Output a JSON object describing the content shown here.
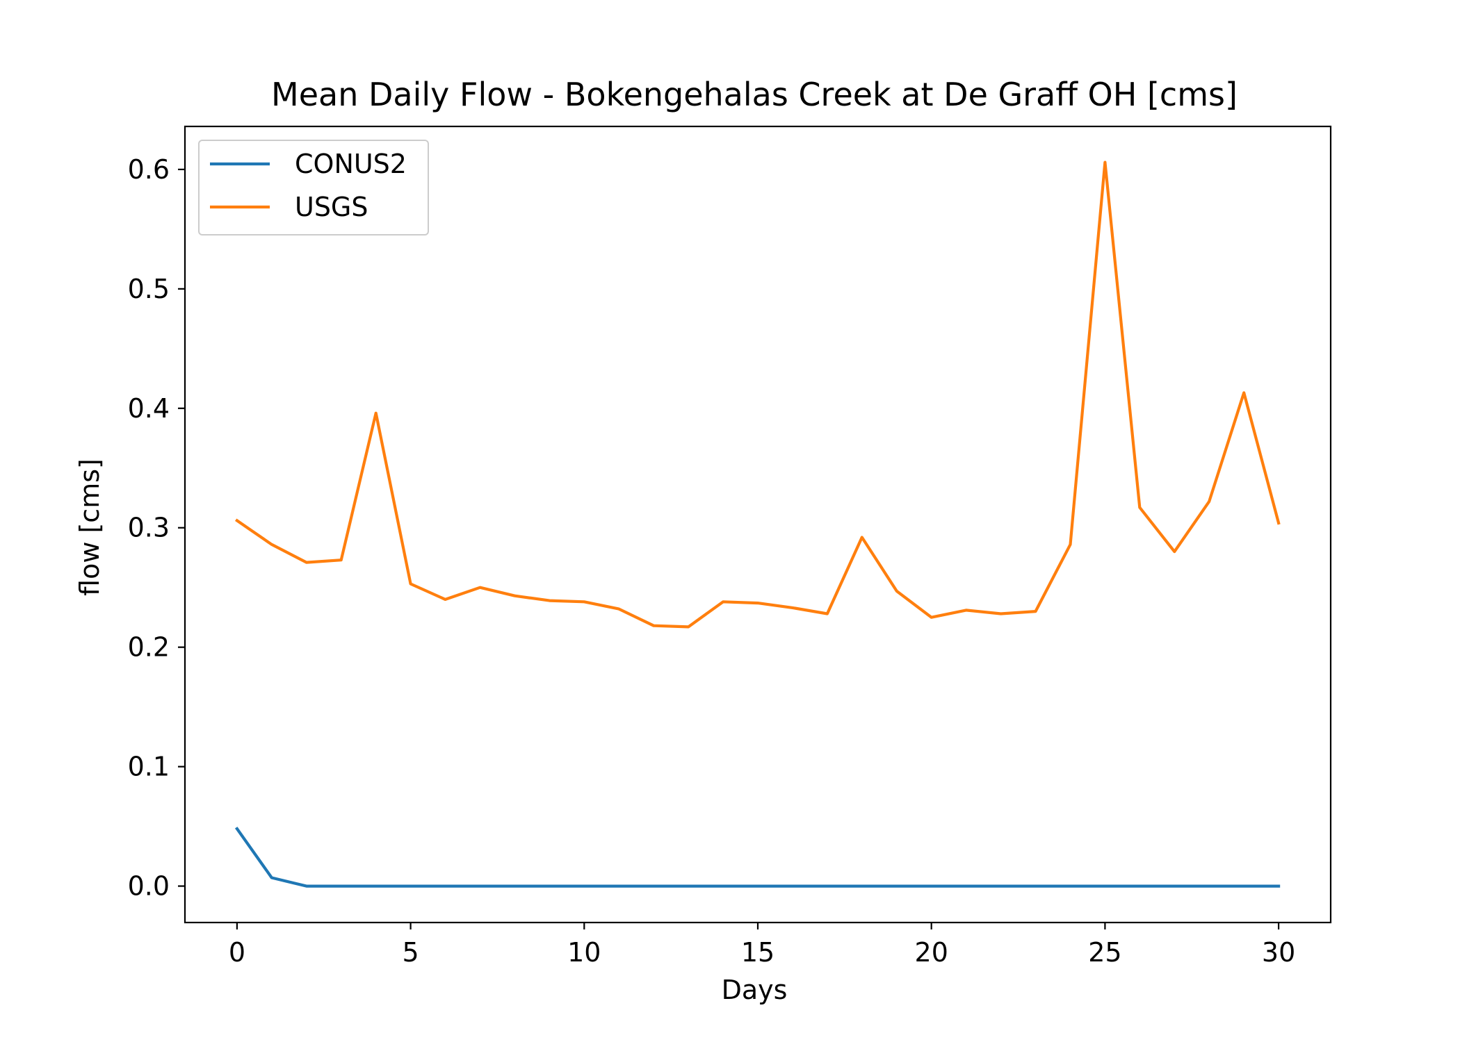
{
  "chart_data": {
    "type": "line",
    "title": "Mean Daily Flow - Bokengehalas Creek at De Graff OH [cms]",
    "xlabel": "Days",
    "ylabel": "flow [cms]",
    "xlim": [
      -1.5,
      31.5
    ],
    "ylim": [
      -0.0305,
      0.636
    ],
    "xticks": [
      0,
      5,
      10,
      15,
      20,
      25,
      30
    ],
    "xtick_labels": [
      "0",
      "5",
      "10",
      "15",
      "20",
      "25",
      "30"
    ],
    "yticks": [
      0.0,
      0.1,
      0.2,
      0.3,
      0.4,
      0.5,
      0.6
    ],
    "ytick_labels": [
      "0.0",
      "0.1",
      "0.2",
      "0.3",
      "0.4",
      "0.5",
      "0.6"
    ],
    "grid": false,
    "legend_position": "top-left",
    "x": [
      0,
      1,
      2,
      3,
      4,
      5,
      6,
      7,
      8,
      9,
      10,
      11,
      12,
      13,
      14,
      15,
      16,
      17,
      18,
      19,
      20,
      21,
      22,
      23,
      24,
      25,
      26,
      27,
      28,
      29,
      30
    ],
    "series": [
      {
        "name": "CONUS2",
        "color": "#1f77b4",
        "values": [
          0.048,
          0.007,
          0,
          0,
          0,
          0,
          0,
          0,
          0,
          0,
          0,
          0,
          0,
          0,
          0,
          0,
          0,
          0,
          0,
          0,
          0,
          0,
          0,
          0,
          0,
          0,
          0,
          0,
          0,
          0,
          0
        ]
      },
      {
        "name": "USGS",
        "color": "#ff7f0e",
        "values": [
          0.306,
          0.286,
          0.271,
          0.273,
          0.396,
          0.253,
          0.24,
          0.25,
          0.243,
          0.239,
          0.238,
          0.232,
          0.218,
          0.217,
          0.238,
          0.237,
          0.233,
          0.228,
          0.292,
          0.247,
          0.225,
          0.231,
          0.228,
          0.23,
          0.286,
          0.606,
          0.317,
          0.28,
          0.322,
          0.413,
          0.304
        ]
      }
    ]
  }
}
